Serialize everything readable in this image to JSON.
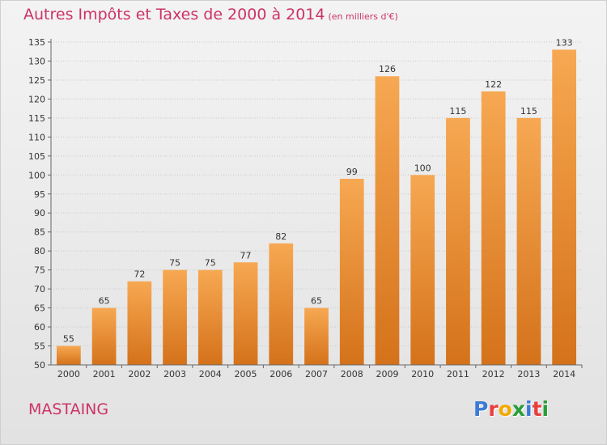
{
  "title": "Autres Impôts et Taxes de 2000 à 2014",
  "title_unit": "(en milliers d'€)",
  "commune": "MASTAING",
  "brand": {
    "name": "Proxiti",
    "letters": [
      "P",
      "r",
      "o",
      "x",
      "i",
      "t",
      "i"
    ],
    "colors": [
      "#3a7bd5",
      "#e83e3e",
      "#f2a900",
      "#2a9d3a",
      "#3a7bd5",
      "#e83e3e",
      "#2a9d3a"
    ]
  },
  "colors": {
    "title": "#cc3366",
    "bar_top": "#f7a852",
    "bar_bottom": "#d4721a"
  },
  "chart_data": {
    "type": "bar",
    "categories": [
      "2000",
      "2001",
      "2002",
      "2003",
      "2004",
      "2005",
      "2006",
      "2007",
      "2008",
      "2009",
      "2010",
      "2011",
      "2012",
      "2013",
      "2014"
    ],
    "values": [
      55,
      65,
      72,
      75,
      75,
      77,
      82,
      65,
      99,
      126,
      100,
      115,
      122,
      115,
      133
    ],
    "title": "Autres Impôts et Taxes de 2000 à 2014",
    "ylim": [
      50,
      135
    ],
    "yticks": [
      50,
      55,
      60,
      65,
      70,
      75,
      80,
      85,
      90,
      95,
      100,
      105,
      110,
      115,
      120,
      125,
      130,
      135
    ],
    "grid": true
  }
}
